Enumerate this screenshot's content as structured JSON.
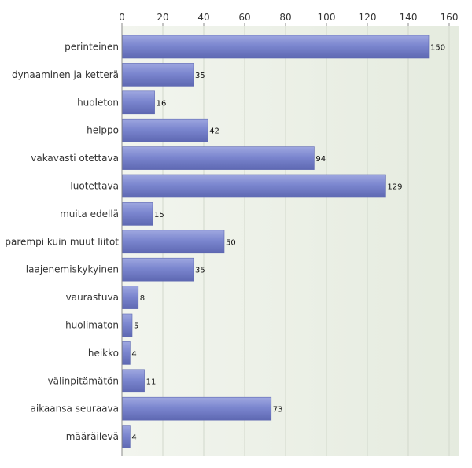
{
  "chart_data": {
    "type": "bar",
    "orientation": "horizontal",
    "title": "",
    "xlabel": "",
    "ylabel": "",
    "xlim": [
      0,
      160
    ],
    "ticks": [
      "0",
      "20",
      "40",
      "60",
      "80",
      "100",
      "120",
      "140",
      "160"
    ],
    "tick_values": [
      0,
      20,
      40,
      60,
      80,
      100,
      120,
      140,
      160
    ],
    "grid": true,
    "categories": [
      "perinteinen",
      "dynaaminen ja ketterä",
      "huoleton",
      "helppo",
      "vakavasti otettava",
      "luotettava",
      "muita edellä",
      "parempi kuin muut liitot",
      "laajenemiskykyinen",
      "vaurastuva",
      "huolimaton",
      "heikko",
      "välinpitämätön",
      "aikaansa seuraava",
      "määräilevä"
    ],
    "values": [
      150,
      35,
      16,
      42,
      94,
      129,
      15,
      50,
      35,
      8,
      5,
      4,
      11,
      73,
      4
    ],
    "colors": {
      "bar": "#7b86cf",
      "bar_light": "#9ea7e0",
      "bar_dark": "#5e68b2",
      "plot_bg_left": "#f2f5ee",
      "plot_bg_right": "#e5ebdf",
      "grid": "#d2d8cc",
      "axis": "#8a8a8a"
    }
  }
}
